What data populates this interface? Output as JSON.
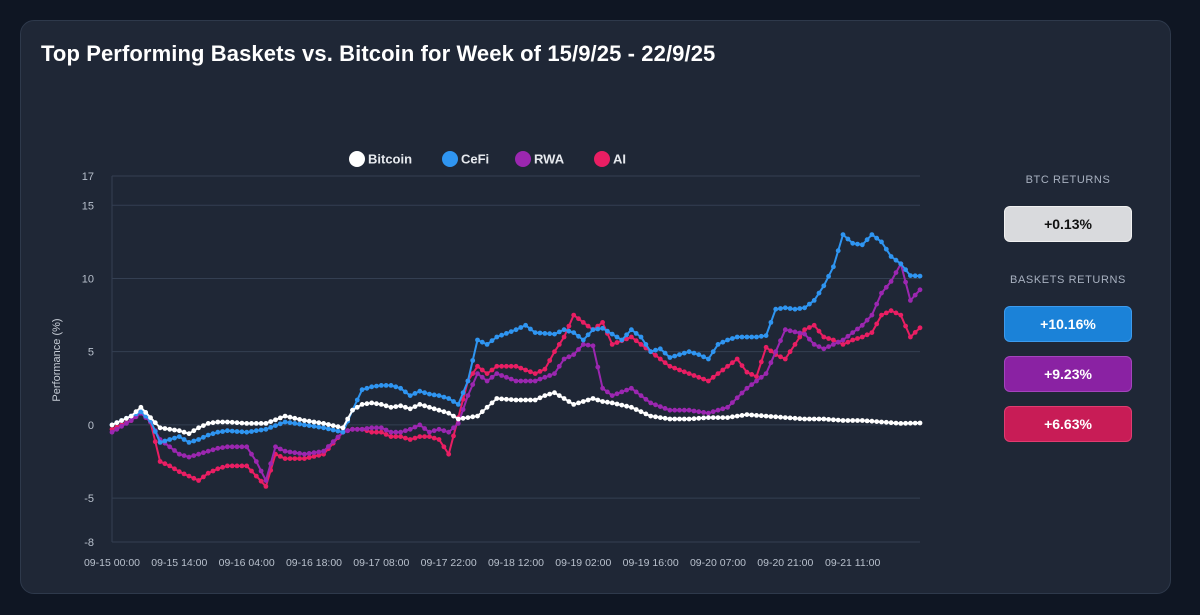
{
  "title": "Top Performing Baskets vs. Bitcoin for Week of 15/9/25 - 22/9/25",
  "colors": {
    "bitcoin": "#ffffff",
    "cefi": "#2f95f1",
    "rwa": "#9b27b0",
    "ai": "#e91e63"
  },
  "returns_panel": {
    "btc_label": "BTC RETURNS",
    "btc_value": "+0.13%",
    "baskets_label": "BASKETS RETURNS",
    "baskets": [
      {
        "name": "CeFi",
        "value": "+10.16%"
      },
      {
        "name": "RWA",
        "value": "+9.23%"
      },
      {
        "name": "AI",
        "value": "+6.63%"
      }
    ]
  },
  "chart_data": {
    "type": "line",
    "title": "Top Performing Baskets vs. Bitcoin for Week of 15/9/25 - 22/9/25",
    "xlabel": "",
    "ylabel": "Performance (%)",
    "ylim": [
      -8,
      17
    ],
    "yticks": [
      -8,
      -5,
      0,
      5,
      10,
      15,
      17
    ],
    "xlim_hours": [
      0,
      168
    ],
    "x_tick_labels": [
      "09-15 00:00",
      "09-15 14:00",
      "09-16 04:00",
      "09-16 18:00",
      "09-17 08:00",
      "09-17 22:00",
      "09-18 12:00",
      "09-19 02:00",
      "09-19 16:00",
      "09-20 07:00",
      "09-20 21:00",
      "09-21 11:00"
    ],
    "grid": true,
    "legend_position": "top",
    "series": [
      {
        "name": "Bitcoin",
        "x": [
          0,
          4,
          6,
          8,
          10,
          12,
          14,
          16,
          18,
          20,
          22,
          24,
          28,
          32,
          36,
          40,
          44,
          48,
          50,
          52,
          54,
          56,
          58,
          60,
          62,
          64,
          66,
          68,
          70,
          72,
          76,
          80,
          84,
          88,
          90,
          92,
          94,
          96,
          98,
          100,
          102,
          104,
          108,
          112,
          116,
          120,
          124,
          128,
          130,
          132,
          136,
          140,
          144,
          148,
          152,
          156,
          160,
          164,
          168
        ],
        "y": [
          0,
          0.6,
          1.2,
          0.5,
          -0.2,
          -0.3,
          -0.4,
          -0.6,
          -0.2,
          0.1,
          0.2,
          0.2,
          0.1,
          0.1,
          0.6,
          0.3,
          0.1,
          -0.2,
          1.0,
          1.4,
          1.5,
          1.4,
          1.2,
          1.3,
          1.1,
          1.4,
          1.2,
          1.0,
          0.8,
          0.4,
          0.6,
          1.8,
          1.7,
          1.7,
          2.0,
          2.2,
          1.8,
          1.4,
          1.6,
          1.8,
          1.6,
          1.5,
          1.2,
          0.6,
          0.4,
          0.4,
          0.5,
          0.5,
          0.6,
          0.7,
          0.6,
          0.5,
          0.4,
          0.4,
          0.3,
          0.3,
          0.2,
          0.1,
          0.13
        ]
      },
      {
        "name": "CeFi",
        "x": [
          0,
          4,
          6,
          8,
          10,
          12,
          14,
          16,
          18,
          20,
          22,
          24,
          28,
          32,
          36,
          40,
          44,
          48,
          50,
          52,
          54,
          56,
          58,
          60,
          62,
          64,
          66,
          68,
          70,
          72,
          74,
          76,
          78,
          80,
          84,
          86,
          88,
          92,
          94,
          96,
          98,
          100,
          102,
          104,
          106,
          108,
          110,
          112,
          114,
          116,
          118,
          120,
          122,
          124,
          126,
          128,
          130,
          132,
          134,
          136,
          138,
          140,
          142,
          144,
          146,
          148,
          150,
          152,
          154,
          156,
          158,
          160,
          162,
          164,
          166,
          168
        ],
        "y": [
          0,
          0.6,
          0.9,
          0.3,
          -1.2,
          -1.0,
          -0.8,
          -1.2,
          -1.0,
          -0.7,
          -0.5,
          -0.4,
          -0.5,
          -0.3,
          0.2,
          0.0,
          -0.2,
          -0.5,
          1.0,
          2.4,
          2.6,
          2.7,
          2.7,
          2.5,
          2.0,
          2.3,
          2.1,
          2.0,
          1.8,
          1.4,
          3.0,
          5.8,
          5.5,
          6.0,
          6.5,
          6.8,
          6.3,
          6.2,
          6.5,
          6.3,
          5.8,
          6.5,
          6.6,
          6.2,
          5.8,
          6.5,
          6.0,
          5.0,
          5.2,
          4.6,
          4.8,
          5.0,
          4.8,
          4.5,
          5.5,
          5.8,
          6.0,
          6.0,
          6.0,
          6.1,
          7.9,
          8.0,
          7.9,
          8.0,
          8.5,
          9.5,
          10.8,
          13.0,
          12.4,
          12.3,
          13.0,
          12.5,
          11.5,
          11.0,
          10.2,
          10.16
        ]
      },
      {
        "name": "RWA",
        "x": [
          0,
          4,
          6,
          8,
          10,
          12,
          14,
          16,
          18,
          20,
          22,
          24,
          28,
          30,
          32,
          34,
          36,
          40,
          44,
          48,
          50,
          52,
          54,
          56,
          58,
          60,
          62,
          64,
          66,
          68,
          70,
          72,
          74,
          76,
          78,
          80,
          84,
          88,
          92,
          94,
          96,
          98,
          100,
          102,
          104,
          108,
          112,
          116,
          120,
          124,
          128,
          132,
          136,
          140,
          144,
          146,
          148,
          150,
          152,
          154,
          156,
          158,
          160,
          162,
          164,
          166,
          168
        ],
        "y": [
          -0.5,
          0.3,
          0.8,
          0.2,
          -1.0,
          -1.5,
          -2.0,
          -2.2,
          -2.0,
          -1.8,
          -1.6,
          -1.5,
          -1.5,
          -2.5,
          -3.8,
          -1.5,
          -1.8,
          -2.0,
          -1.8,
          -0.5,
          -0.3,
          -0.3,
          -0.2,
          -0.2,
          -0.5,
          -0.5,
          -0.3,
          0.0,
          -0.5,
          -0.3,
          -0.5,
          0.1,
          2.0,
          3.5,
          3.0,
          3.5,
          3.0,
          3.0,
          3.5,
          4.5,
          4.8,
          5.5,
          5.4,
          2.5,
          2.0,
          2.5,
          1.5,
          1.0,
          1.0,
          0.8,
          1.2,
          2.5,
          3.5,
          6.5,
          6.2,
          5.5,
          5.2,
          5.5,
          5.8,
          6.3,
          6.8,
          7.5,
          9.0,
          9.8,
          11.0,
          8.5,
          9.23
        ]
      },
      {
        "name": "AI",
        "x": [
          0,
          4,
          6,
          8,
          10,
          12,
          14,
          16,
          18,
          20,
          22,
          24,
          28,
          30,
          32,
          34,
          36,
          40,
          44,
          48,
          50,
          52,
          54,
          56,
          58,
          60,
          62,
          64,
          66,
          68,
          70,
          72,
          74,
          76,
          78,
          80,
          84,
          88,
          90,
          92,
          94,
          96,
          98,
          100,
          102,
          104,
          108,
          112,
          116,
          120,
          124,
          128,
          130,
          132,
          134,
          136,
          138,
          140,
          142,
          144,
          146,
          148,
          150,
          152,
          154,
          156,
          158,
          160,
          162,
          164,
          166,
          168
        ],
        "y": [
          -0.3,
          0.3,
          1.0,
          0.2,
          -2.5,
          -2.8,
          -3.2,
          -3.5,
          -3.8,
          -3.3,
          -3.0,
          -2.8,
          -2.8,
          -3.5,
          -4.2,
          -2.0,
          -2.3,
          -2.3,
          -2.0,
          -0.5,
          -0.3,
          -0.3,
          -0.5,
          -0.5,
          -0.8,
          -0.8,
          -1.0,
          -0.8,
          -0.8,
          -1.0,
          -2.0,
          0.5,
          3.0,
          4.0,
          3.5,
          4.0,
          4.0,
          3.5,
          3.8,
          5.0,
          6.0,
          7.5,
          7.0,
          6.5,
          7.0,
          5.5,
          6.0,
          5.0,
          4.0,
          3.5,
          3.0,
          4.0,
          4.5,
          3.6,
          3.3,
          5.3,
          4.8,
          4.5,
          5.5,
          6.5,
          6.8,
          6.0,
          5.8,
          5.5,
          5.8,
          6.0,
          6.3,
          7.5,
          7.8,
          7.5,
          6.0,
          6.63
        ]
      }
    ]
  }
}
